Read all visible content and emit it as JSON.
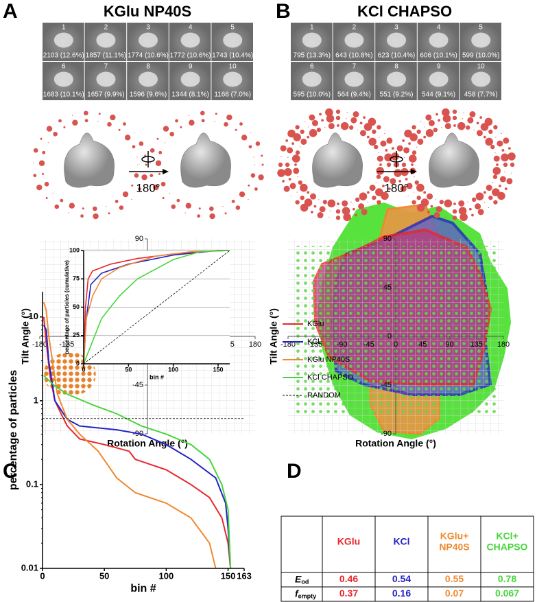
{
  "panel_a": {
    "label": "A",
    "title": "KGlu NP40S",
    "rotation": "180°",
    "classes": [
      {
        "n": 1,
        "caption": "2103 (12.6%)"
      },
      {
        "n": 2,
        "caption": "1857 (11.1%)"
      },
      {
        "n": 3,
        "caption": "1774 (10.6%)"
      },
      {
        "n": 4,
        "caption": "1772 (10.6%)"
      },
      {
        "n": 5,
        "caption": "1743 (10.4%)"
      },
      {
        "n": 6,
        "caption": "1683 (10.1%)"
      },
      {
        "n": 7,
        "caption": "1657 (9.9%)"
      },
      {
        "n": 8,
        "caption": "1596 (9.6%)"
      },
      {
        "n": 9,
        "caption": "1344 (8.1%)"
      },
      {
        "n": 10,
        "caption": "1166 (7.0%)"
      }
    ],
    "tilt_plot": {
      "xlabel": "Rotation Angle (°)",
      "ylabel": "Tilt Angle (°)",
      "color": "#e8822a",
      "xlim": [
        -180,
        180
      ],
      "ylim": [
        -90,
        90
      ],
      "xticks": [
        -180,
        -135,
        -90,
        -45,
        0,
        45,
        90,
        135,
        180
      ],
      "yticks": [
        90,
        45,
        0,
        -45,
        -90
      ]
    }
  },
  "panel_b": {
    "label": "B",
    "title": "KCl CHAPSO",
    "rotation": "180°",
    "classes": [
      {
        "n": 1,
        "caption": "795 (13.3%)"
      },
      {
        "n": 2,
        "caption": "643 (10.8%)"
      },
      {
        "n": 3,
        "caption": "623 (10.4%)"
      },
      {
        "n": 4,
        "caption": "606 (10.1%)"
      },
      {
        "n": 5,
        "caption": "599 (10.0%)"
      },
      {
        "n": 6,
        "caption": "595 (10.0%)"
      },
      {
        "n": 7,
        "caption": "564 (9.4%)"
      },
      {
        "n": 8,
        "caption": "551 (9.2%)"
      },
      {
        "n": 9,
        "caption": "544 (9.1%)"
      },
      {
        "n": 10,
        "caption": "458 (7.7%)"
      }
    ],
    "tilt_plot": {
      "xlabel": "Rotation Angle (°)",
      "ylabel": "Tilt Angle (°)",
      "color": "#5fd84a",
      "xlim": [
        -180,
        180
      ],
      "ylim": [
        -90,
        90
      ],
      "xticks": [
        -180,
        -135,
        -90,
        -45,
        0,
        45,
        90,
        135,
        180
      ],
      "yticks": [
        90,
        45,
        0,
        -45,
        -90
      ]
    }
  },
  "chart_data": [
    {
      "type": "line",
      "panel": "C",
      "xlabel": "bin #",
      "ylabel": "percentage of particles",
      "log_y": true,
      "xlim": [
        0,
        163
      ],
      "ylim": [
        0.01,
        20
      ],
      "xticks": [
        0,
        50,
        100,
        150,
        163
      ],
      "yticks": [
        10,
        1,
        0.1,
        0.01
      ],
      "legend": "right",
      "series": [
        {
          "name": "KGlu",
          "color": "#e8262b",
          "x": [
            1,
            3,
            6,
            10,
            15,
            20,
            30,
            50,
            70,
            75,
            100,
            120,
            135,
            145,
            150,
            152
          ],
          "values": [
            10,
            5,
            2,
            1,
            0.7,
            0.5,
            0.35,
            0.3,
            0.25,
            0.2,
            0.15,
            0.1,
            0.07,
            0.04,
            0.02,
            0.01
          ]
        },
        {
          "name": "KCl",
          "color": "#2222c8",
          "x": [
            1,
            3,
            5,
            10,
            20,
            30,
            60,
            80,
            100,
            120,
            140,
            148,
            150,
            152
          ],
          "values": [
            8,
            7,
            3,
            1,
            0.6,
            0.5,
            0.45,
            0.4,
            0.3,
            0.2,
            0.12,
            0.06,
            0.03,
            0.01
          ]
        },
        {
          "name": "KGlu NP40S",
          "color": "#f0892e",
          "x": [
            1,
            3,
            5,
            8,
            12,
            20,
            30,
            45,
            60,
            75,
            100,
            120,
            135,
            140
          ],
          "values": [
            15,
            12,
            6,
            3,
            1.2,
            0.6,
            0.4,
            0.25,
            0.12,
            0.08,
            0.06,
            0.04,
            0.02,
            0.01
          ]
        },
        {
          "name": "KCl CHAPSO",
          "color": "#46d63a",
          "x": [
            1,
            10,
            20,
            40,
            60,
            80,
            100,
            120,
            135,
            145,
            150,
            152
          ],
          "values": [
            2,
            1.5,
            1.2,
            0.9,
            0.7,
            0.5,
            0.4,
            0.3,
            0.2,
            0.1,
            0.05,
            0.01
          ]
        },
        {
          "name": "RANDOM",
          "color": "#000000",
          "dashed": true,
          "x": [
            0,
            163
          ],
          "values": [
            0.613,
            0.613
          ]
        }
      ]
    },
    {
      "type": "line",
      "inset": true,
      "xlabel": "bin #",
      "ylabel": "percentage of particles (cumulative)",
      "xlim": [
        0,
        163
      ],
      "ylim": [
        0,
        100
      ],
      "xticks": [
        0,
        50,
        100,
        150
      ],
      "yticks": [
        0,
        25,
        50,
        75,
        100
      ],
      "grid": true,
      "series": [
        {
          "color": "#e8262b",
          "x": [
            0,
            2,
            5,
            10,
            30,
            60,
            100,
            150,
            163
          ],
          "values": [
            0,
            50,
            75,
            82,
            88,
            93,
            97,
            100,
            100
          ]
        },
        {
          "color": "#2222c8",
          "x": [
            0,
            3,
            8,
            20,
            50,
            100,
            150,
            163
          ],
          "values": [
            0,
            40,
            70,
            80,
            88,
            96,
            100,
            100
          ]
        },
        {
          "color": "#f0892e",
          "x": [
            0,
            3,
            10,
            20,
            40,
            80,
            120,
            163
          ],
          "values": [
            0,
            40,
            60,
            75,
            85,
            95,
            99,
            100
          ]
        },
        {
          "color": "#46d63a",
          "x": [
            0,
            20,
            40,
            60,
            100,
            130,
            163
          ],
          "values": [
            0,
            40,
            60,
            75,
            92,
            99,
            100
          ]
        },
        {
          "color": "#000000",
          "dashed": true,
          "x": [
            0,
            163
          ],
          "values": [
            0,
            100
          ]
        }
      ]
    }
  ],
  "panel_c": {
    "label": "C"
  },
  "panel_d": {
    "label": "D",
    "table": {
      "columns": [
        {
          "lines": [
            "KGlu"
          ],
          "color": "#e8262b"
        },
        {
          "lines": [
            "KCl"
          ],
          "color": "#2222c8"
        },
        {
          "lines": [
            "KGlu+",
            "NP40S"
          ],
          "color": "#f0892e"
        },
        {
          "lines": [
            "KCl+",
            "CHAPSO"
          ],
          "color": "#46d63a"
        }
      ],
      "rows": [
        {
          "label": {
            "main": "E",
            "sub": "od"
          },
          "values": [
            0.46,
            0.54,
            0.55,
            0.78
          ]
        },
        {
          "label": {
            "main": "f",
            "sub": "empty"
          },
          "values": [
            0.37,
            0.16,
            0.07,
            0.067
          ]
        }
      ]
    }
  }
}
